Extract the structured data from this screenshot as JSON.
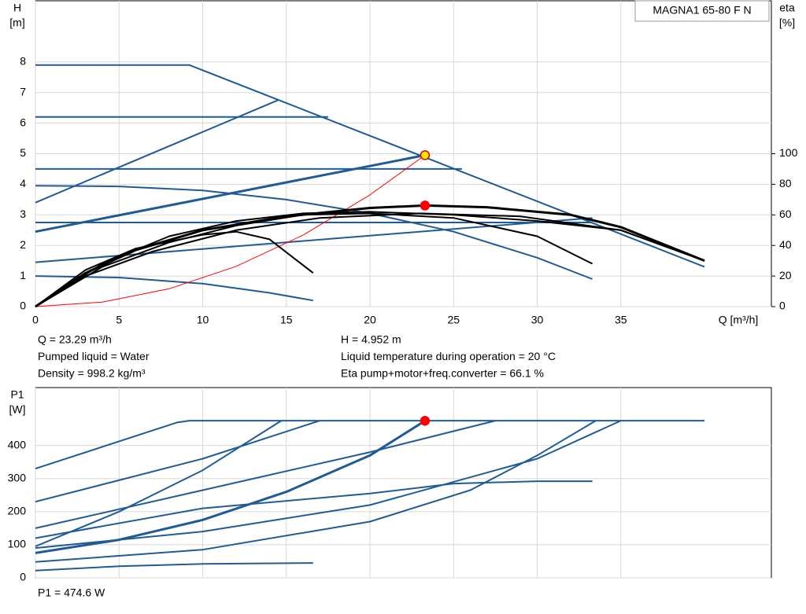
{
  "product": "MAGNA1 65-80 F N",
  "info": [
    "Q = 23.29 m³/h",
    "Pumped liquid = Water",
    "Density = 998.2 kg/m³",
    "H = 4.952 m",
    "Liquid temperature during operation = 20 °C",
    "Eta pump+motor+freq.converter = 66.1 %"
  ],
  "chart_data": [
    {
      "type": "line",
      "y_label": "H",
      "y_unit": "[m]",
      "y2_label": "eta",
      "y2_unit": "[%]",
      "x_label": "Q [m³/h]",
      "xlim": [
        0,
        44
      ],
      "xticks": [
        0,
        5,
        10,
        15,
        20,
        25,
        30,
        35
      ],
      "ylim": [
        0,
        10
      ],
      "yticks": [
        0,
        1,
        2,
        3,
        4,
        5,
        6,
        7,
        8
      ],
      "y2lim": [
        0,
        200
      ],
      "y2ticks": [
        0,
        20,
        40,
        60,
        80,
        100
      ],
      "grid": true,
      "series": [
        {
          "color": "#1f5b94",
          "width": 2,
          "x": [
            0,
            9.2,
            40
          ],
          "values": [
            7.9,
            7.9,
            1.3
          ]
        },
        {
          "color": "#1f5b94",
          "width": 2,
          "x": [
            0,
            17.5
          ],
          "values": [
            6.2,
            6.2
          ]
        },
        {
          "color": "#1f5b94",
          "width": 2,
          "x": [
            0,
            25.5
          ],
          "values": [
            4.5,
            4.5
          ]
        },
        {
          "color": "#1f5b94",
          "width": 2,
          "x": [
            0,
            33.3
          ],
          "values": [
            2.75,
            2.75
          ]
        },
        {
          "color": "#1f5b94",
          "width": 2,
          "x": [
            0,
            14.5
          ],
          "values": [
            3.4,
            6.75
          ]
        },
        {
          "color": "#1f5b94",
          "width": 3,
          "x": [
            0,
            23.29
          ],
          "values": [
            2.45,
            4.952
          ]
        },
        {
          "color": "#1f5b94",
          "width": 2,
          "x": [
            0,
            33.3
          ],
          "values": [
            1.45,
            2.9
          ]
        },
        {
          "color": "#1f5b94",
          "width": 2,
          "x": [
            0,
            5,
            10,
            15,
            20,
            25,
            30,
            33.3
          ],
          "values": [
            3.95,
            3.93,
            3.8,
            3.5,
            3.05,
            2.45,
            1.6,
            0.9
          ]
        },
        {
          "color": "#1f5b94",
          "width": 2,
          "x": [
            0,
            5,
            10,
            14,
            16.6
          ],
          "values": [
            1.0,
            0.95,
            0.75,
            0.45,
            0.2
          ]
        },
        {
          "color": "#ff0000",
          "width": 1,
          "x": [
            0,
            4,
            8,
            12,
            16,
            20,
            23.29
          ],
          "values": [
            0,
            0.146,
            0.584,
            1.315,
            2.337,
            3.652,
            4.952
          ]
        },
        {
          "color": "#000000",
          "width": 2,
          "axis": "y2",
          "x": [
            0,
            3,
            6,
            10,
            12,
            14,
            16.6
          ],
          "values": [
            0,
            24,
            38,
            47,
            49,
            44,
            22
          ]
        },
        {
          "color": "#000000",
          "width": 2,
          "axis": "y2",
          "x": [
            0,
            4,
            8,
            12,
            16,
            20,
            25,
            30,
            33.3
          ],
          "values": [
            0,
            26,
            42,
            53,
            60,
            61,
            58,
            46,
            28
          ]
        },
        {
          "color": "#000000",
          "width": 2,
          "axis": "y2",
          "x": [
            0,
            4,
            8,
            12,
            16,
            20,
            25,
            30,
            35,
            40
          ],
          "values": [
            0,
            28,
            46,
            56,
            61,
            62,
            60,
            56,
            50,
            30
          ]
        },
        {
          "color": "#000000",
          "width": 2,
          "axis": "y2",
          "x": [
            0,
            3,
            7,
            12,
            17,
            23,
            29,
            35,
            40
          ],
          "values": [
            0,
            20,
            36,
            50,
            58,
            61,
            59,
            50,
            30
          ]
        },
        {
          "color": "#000000",
          "width": 3,
          "axis": "y2",
          "x": [
            0,
            3,
            6,
            10,
            15,
            20,
            23.29,
            27,
            32,
            35,
            40
          ],
          "values": [
            0,
            22,
            37,
            50,
            59,
            64.5,
            66.1,
            65,
            60,
            52,
            30
          ]
        }
      ],
      "points": [
        {
          "x": 23.29,
          "y": 4.952,
          "fill": "#f5e600",
          "stroke": "#e00000"
        },
        {
          "x": 23.29,
          "y": 66.1,
          "axis": "y2",
          "fill": "#ff0000",
          "stroke": "#ff0000"
        }
      ]
    },
    {
      "type": "line",
      "y_label": "P1",
      "y_unit": "[W]",
      "result": "P1 = 474.6 W",
      "xlim": [
        0,
        44
      ],
      "xticks": [
        0,
        5,
        10,
        15,
        20,
        25,
        30,
        35
      ],
      "ylim": [
        0,
        575
      ],
      "yticks": [
        0,
        100,
        200,
        300,
        400
      ],
      "grid": true,
      "series": [
        {
          "color": "#1f5b94",
          "width": 2,
          "x": [
            0,
            8.5,
            9.2,
            40
          ],
          "values": [
            330,
            470,
            475,
            475
          ]
        },
        {
          "color": "#1f5b94",
          "width": 2,
          "x": [
            0,
            10,
            17
          ],
          "values": [
            230,
            360,
            475
          ]
        },
        {
          "color": "#1f5b94",
          "width": 2,
          "x": [
            0,
            5,
            10,
            14.7
          ],
          "values": [
            95,
            200,
            325,
            475
          ]
        },
        {
          "color": "#1f5b94",
          "width": 2,
          "x": [
            0,
            10,
            20,
            27.5
          ],
          "values": [
            150,
            265,
            380,
            475
          ]
        },
        {
          "color": "#1f5b94",
          "width": 3,
          "x": [
            0,
            5,
            10,
            15,
            20,
            23.29
          ],
          "values": [
            75,
            115,
            175,
            260,
            370,
            474.6
          ]
        },
        {
          "color": "#1f5b94",
          "width": 2,
          "x": [
            0,
            10,
            20,
            25,
            30,
            33.3
          ],
          "values": [
            120,
            210,
            255,
            285,
            292,
            292
          ]
        },
        {
          "color": "#1f5b94",
          "width": 2,
          "x": [
            0,
            10,
            20,
            30,
            35
          ],
          "values": [
            90,
            140,
            220,
            360,
            475
          ]
        },
        {
          "color": "#1f5b94",
          "width": 2,
          "x": [
            0,
            10,
            20,
            26,
            30,
            33.5
          ],
          "values": [
            48,
            85,
            170,
            265,
            370,
            475
          ]
        },
        {
          "color": "#1f5b94",
          "width": 2,
          "x": [
            0,
            5,
            10,
            16.6
          ],
          "values": [
            22,
            35,
            42,
            45
          ]
        }
      ],
      "points": [
        {
          "x": 23.29,
          "y": 474.6,
          "fill": "#ff0000",
          "stroke": "#ff0000"
        }
      ]
    }
  ]
}
